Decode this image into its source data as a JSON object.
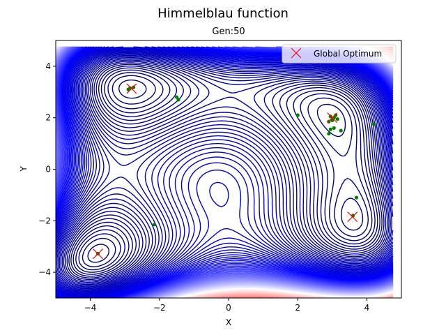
{
  "chart_data": {
    "type": "scatter",
    "title": "Himmelblau function",
    "subtitle": "Gen:50",
    "xlabel": "X",
    "ylabel": "Y",
    "xlim": [
      -5,
      5
    ],
    "ylim": [
      -5,
      5
    ],
    "x_ticks": [
      -4,
      -2,
      0,
      2,
      4
    ],
    "y_ticks": [
      -4,
      -2,
      0,
      2,
      4
    ],
    "legend_position": "top-right",
    "contour_colormap": [
      "#00007f",
      "#0000ff",
      "#ffffff",
      "#ff0000"
    ],
    "series": [
      {
        "name": "Global Optimum",
        "marker": "x",
        "color": "#ff0000",
        "points": [
          {
            "x": 3.0,
            "y": 2.0
          },
          {
            "x": -2.805,
            "y": 3.131
          },
          {
            "x": -3.779,
            "y": -3.283
          },
          {
            "x": 3.584,
            "y": -1.848
          }
        ]
      },
      {
        "marker": "dot",
        "color": "#008000",
        "points": [
          {
            "x": -2.85,
            "y": 3.15
          },
          {
            "x": -2.75,
            "y": 3.18
          },
          {
            "x": -2.9,
            "y": 3.1
          },
          {
            "x": -1.5,
            "y": 2.8
          },
          {
            "x": -1.45,
            "y": 2.7
          },
          {
            "x": 2.0,
            "y": 2.1
          },
          {
            "x": 2.95,
            "y": 2.05
          },
          {
            "x": 3.05,
            "y": 2.0
          },
          {
            "x": 3.1,
            "y": 2.1
          },
          {
            "x": 2.9,
            "y": 1.85
          },
          {
            "x": 3.0,
            "y": 1.9
          },
          {
            "x": 3.15,
            "y": 1.95
          },
          {
            "x": 3.05,
            "y": 1.6
          },
          {
            "x": 2.95,
            "y": 1.55
          },
          {
            "x": 3.25,
            "y": 1.5
          },
          {
            "x": 2.9,
            "y": 1.38
          },
          {
            "x": 4.2,
            "y": 1.75
          },
          {
            "x": 3.7,
            "y": -1.1
          },
          {
            "x": 3.6,
            "y": -1.8
          },
          {
            "x": -3.78,
            "y": -3.28
          },
          {
            "x": -2.15,
            "y": -2.15
          }
        ]
      }
    ]
  }
}
